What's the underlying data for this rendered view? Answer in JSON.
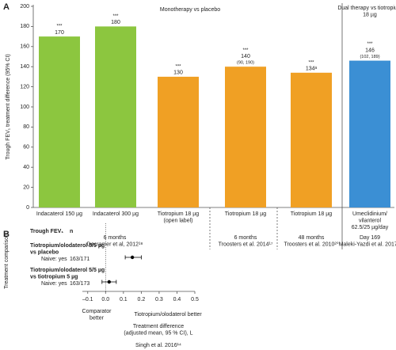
{
  "chart_data": [
    {
      "type": "bar",
      "panel": "A",
      "y_label": "Trough FEV₁ treatment difference (95% CI)",
      "categories": [
        "Indacaterol 150 µg",
        "Indacaterol 300 µg",
        "Tiotropium 18 µg\n(open label)",
        "Tiotropium 18 µg",
        "Tiotropium 18 µg",
        "Umeclidinium/\nvilanterol\n62.5/25 µg/day"
      ],
      "values": [
        170,
        180,
        130,
        140,
        134,
        146
      ],
      "value_labels": [
        "170",
        "180",
        "130",
        "140",
        "134ᵃ",
        "146"
      ],
      "ci_labels": [
        null,
        null,
        null,
        "(90, 190)",
        null,
        "(102, 189)"
      ],
      "significance": [
        "***",
        "***",
        "***",
        "***",
        "***",
        "***"
      ],
      "colors": [
        "#8cc63f",
        "#8cc63f",
        "#f0a024",
        "#f0a024",
        "#f0a024",
        "#3b8fd4"
      ],
      "ylim": [
        0,
        200
      ],
      "yticks": [
        0,
        20,
        40,
        60,
        80,
        100,
        120,
        140,
        160,
        180,
        200
      ],
      "headers": [
        "Monotherapy vs placebo",
        "Dual therapy vs tiotropium\n18 µg"
      ],
      "groups": [
        "6 months\nDecramer et al, 2012¹⁸",
        "6 months\nTroosters et al. 2014¹⁷",
        "48 months\nTroosters et al. 2010²⁰",
        "Day 169\nMaleki-Yazdi et al. 2017¹²"
      ]
    },
    {
      "type": "forest",
      "panel": "B",
      "y_label": "Treatment comparison",
      "column_headers": [
        "Trough FEV₁",
        "n"
      ],
      "rows": [
        "Tiotropium/olodaterol 5/5 µg\nvs placebo",
        "Tiotropium/olodaterol 5/5 µg\nvs tiotropium 5 µg"
      ],
      "subgroups": [
        "Naive: yes",
        "Naive: yes"
      ],
      "n": [
        "163/171",
        "163/173"
      ],
      "values": [
        0.15,
        0.02
      ],
      "lower": [
        0.11,
        -0.02
      ],
      "upper": [
        0.2,
        0.06
      ],
      "color": "#000000",
      "xlim": [
        -0.13,
        0.5
      ],
      "xticks": [
        {
          "value": -0.1,
          "label": "–0.1"
        },
        {
          "value": 0,
          "label": "0.0"
        },
        0.1,
        0.2,
        0.3,
        0.4,
        0.5
      ],
      "direction_labels": [
        "Comparator\nbetter",
        "Tiotropium/olodaterol better"
      ],
      "x_label": "Treatment difference\n(adjusted mean, 95 % CI), L",
      "source": "Singh et al. 2016¹⁴"
    }
  ]
}
